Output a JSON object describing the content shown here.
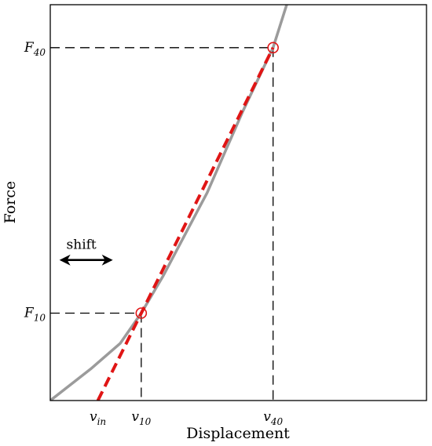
{
  "chart_data": {
    "type": "line",
    "xlabel": "Displacement",
    "ylabel": "Force",
    "grid": false,
    "legend": "none",
    "x_ticks": [
      {
        "label": "v",
        "sub": "in",
        "value": 0.1265
      },
      {
        "label": "v",
        "sub": "10",
        "value": 0.2418
      },
      {
        "label": "v",
        "sub": "40",
        "value": 0.5922
      }
    ],
    "y_ticks": [
      {
        "label": "F",
        "sub": "10",
        "value": 0.2208
      },
      {
        "label": "F",
        "sub": "40",
        "value": 0.8915
      }
    ],
    "xlim": [
      0,
      1
    ],
    "ylim": [
      0,
      1
    ],
    "series": [
      {
        "style": "solid",
        "color": "#9b9b9b",
        "x": [
          0.0,
          0.1076,
          0.1856,
          0.2418,
          0.2993,
          0.4168,
          0.5123,
          0.5922,
          0.6284
        ],
        "y": [
          0.0,
          0.0799,
          0.1441,
          0.2208,
          0.3136,
          0.5247,
          0.7318,
          0.8915,
          1.0
        ]
      },
      {
        "style": "dashed",
        "color": "#e01515",
        "x": [
          0.1265,
          0.5922
        ],
        "y": [
          0.0,
          0.8915
        ]
      }
    ],
    "markers": [
      {
        "x": 0.2418,
        "y": 0.2208,
        "color": "#e01515",
        "shape": "open-circle"
      },
      {
        "x": 0.5922,
        "y": 0.8915,
        "color": "#e01515",
        "shape": "open-circle"
      }
    ],
    "reference_lines": [
      {
        "from": [
          0,
          0.2208
        ],
        "to": [
          0.2418,
          0.2208
        ],
        "style": "dashed",
        "color": "#000000"
      },
      {
        "from": [
          0.2418,
          0.2208
        ],
        "to": [
          0.2418,
          0.0
        ],
        "style": "dashed",
        "color": "#000000"
      },
      {
        "from": [
          0,
          0.8915
        ],
        "to": [
          0.5922,
          0.8915
        ],
        "style": "dashed",
        "color": "#000000"
      },
      {
        "from": [
          0.5922,
          0.8915
        ],
        "to": [
          0.5922,
          0.0
        ],
        "style": "dashed",
        "color": "#000000"
      }
    ],
    "annotations": [
      {
        "text": "shift",
        "type": "double-arrow",
        "x": 0.0285,
        "y": 0.355
      }
    ]
  }
}
